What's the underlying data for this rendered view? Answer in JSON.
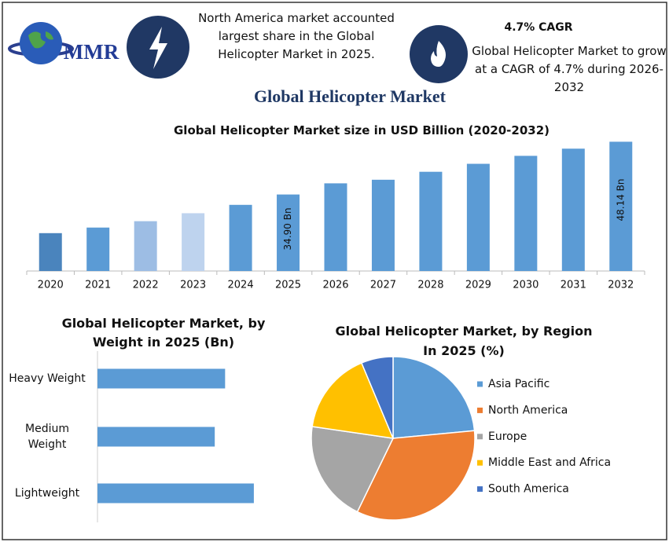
{
  "header": {
    "logo": "MMR",
    "note_left": "North America market accounted largest share in the Global Helicopter Market in 2025.",
    "cagr_title": "4.7% CAGR",
    "cagr_text": "Global Helicopter Market to grow at a CAGR of 4.7% during 2026-2032",
    "title": "Global Helicopter Market"
  },
  "chart_data": [
    {
      "type": "bar",
      "title": "Global Helicopter Market size in USD Billion (2020-2032)",
      "categories": [
        "2020",
        "2021",
        "2022",
        "2023",
        "2024",
        "2025",
        "2026",
        "2027",
        "2028",
        "2029",
        "2030",
        "2031",
        "2032"
      ],
      "values": [
        25.2,
        26.6,
        28.2,
        30.2,
        32.3,
        34.9,
        37.7,
        38.6,
        40.6,
        42.6,
        44.6,
        46.4,
        48.14
      ],
      "value_labels": [
        null,
        null,
        null,
        null,
        null,
        "34.90 Bn",
        null,
        null,
        null,
        null,
        null,
        null,
        "48.14 Bn"
      ],
      "colors": [
        "#4a84bd",
        "#5b9bd5",
        "#9dbde4",
        "#bed3ee",
        "#5b9bd5",
        "#5b9bd5",
        "#5b9bd5",
        "#5b9bd5",
        "#5b9bd5",
        "#5b9bd5",
        "#5b9bd5",
        "#5b9bd5",
        "#5b9bd5"
      ],
      "ylim": [
        15.7,
        50
      ]
    },
    {
      "type": "hbar",
      "title": "Global Helicopter Market, by Weight in 2025 (Bn)",
      "categories": [
        "Heavy Weight",
        "Medium Weight",
        "Lightweight"
      ],
      "values": [
        11.1,
        10.2,
        13.6
      ],
      "color": "#5b9bd5",
      "xlim": [
        0,
        16
      ]
    },
    {
      "type": "pie",
      "title": "Global Helicopter Market, by Region In 2025 (%)",
      "categories": [
        "Asia Pacific",
        "North America",
        "Europe",
        "Middle East and Africa",
        "South America"
      ],
      "values": [
        23.5,
        33.7,
        20.1,
        16.4,
        6.3
      ],
      "colors": [
        "#5b9bd5",
        "#ed7d31",
        "#a5a5a5",
        "#ffc000",
        "#4472c4"
      ],
      "legend": "right"
    }
  ]
}
